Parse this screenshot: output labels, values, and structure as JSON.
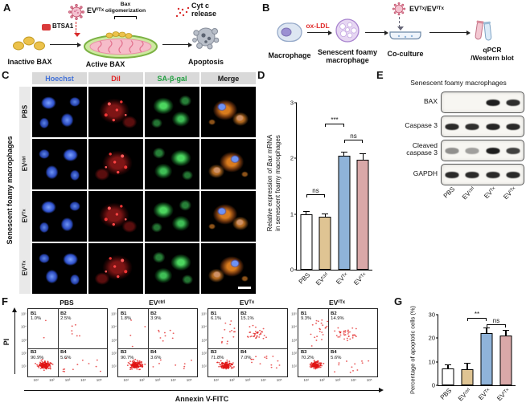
{
  "groups": [
    "PBS",
    "EVᶜᵗʳˡ",
    "EVᵀˣ",
    "EVⁱᵀˣ"
  ],
  "panelA": {
    "label": "A",
    "ev_label": "EVⁱᵀˣ",
    "btsa1": "BTSA1",
    "bax_oligomerization": "Bax oligomerization",
    "cytc_release": "Cyt c release",
    "inactive_bax": "Inactive BAX",
    "active_bax": "Active BAX",
    "apoptosis": "Apoptosis"
  },
  "panelB": {
    "label": "B",
    "ev_label": "EVᵀˣ/EVⁱᵀˣ",
    "oxldl": "ox-LDL",
    "macrophage": "Macrophage",
    "senescent": "Senescent foamy macrophage",
    "coculture": "Co-culture",
    "readout1": "qPCR",
    "readout2": "/Western blot"
  },
  "panelC": {
    "label": "C",
    "side_label": "Senescent foamy macrophages",
    "columns": [
      {
        "label": "Hoechst",
        "color": "#3f6fd8"
      },
      {
        "label": "DiI",
        "color": "#e22626"
      },
      {
        "label": "SA-β-gal",
        "color": "#1f9e3e"
      },
      {
        "label": "Merge",
        "color": "#151515"
      }
    ]
  },
  "panelD": {
    "label": "D",
    "ylabel_pre": "Relative expression of ",
    "ylabel_italic": "Bax",
    "ylabel_post": " mRNA",
    "ylabel_line2": "in senescent foamy macrophages"
  },
  "panelE": {
    "label": "E",
    "title": "Senescent foamy macrophages",
    "blots": [
      {
        "label": "BAX",
        "bands": [
          0,
          0,
          0.95,
          0.88
        ]
      },
      {
        "label": "Caspase 3",
        "bands": [
          0.9,
          0.88,
          0.92,
          0.9
        ]
      },
      {
        "label": "Cleaved caspase 3",
        "bands": [
          0.45,
          0.38,
          0.95,
          0.8
        ]
      },
      {
        "label": "GAPDH",
        "bands": [
          0.9,
          0.9,
          0.9,
          0.9
        ]
      }
    ]
  },
  "panelF": {
    "label": "F",
    "ylabel": "PI",
    "xlabel": "Annexin V-FITC",
    "dot_color": "#e01414",
    "yticks": [
      "10⁵",
      "10⁴",
      "10³",
      "10²",
      "10¹"
    ],
    "xticks": [
      "10¹",
      "10²",
      "10³",
      "10⁴",
      "10⁵"
    ],
    "plots": [
      {
        "title": "PBS",
        "quadrants": [
          {
            "name": "B1",
            "value": "1.0%"
          },
          {
            "name": "B2",
            "value": "2.5%"
          },
          {
            "name": "B3",
            "value": "90.9%"
          },
          {
            "name": "B4",
            "value": "5.6%"
          }
        ]
      },
      {
        "title": "EVᶜᵗʳˡ",
        "quadrants": [
          {
            "name": "B1",
            "value": "1.8%"
          },
          {
            "name": "B2",
            "value": "3.9%"
          },
          {
            "name": "B3",
            "value": "90.7%"
          },
          {
            "name": "B4",
            "value": "3.6%"
          }
        ]
      },
      {
        "title": "EVᵀˣ",
        "quadrants": [
          {
            "name": "B1",
            "value": "6.1%"
          },
          {
            "name": "B2",
            "value": "15.1%"
          },
          {
            "name": "B3",
            "value": "71.8%"
          },
          {
            "name": "B4",
            "value": "7.0%"
          }
        ]
      },
      {
        "title": "EVⁱᵀˣ",
        "quadrants": [
          {
            "name": "B1",
            "value": "9.3%"
          },
          {
            "name": "B2",
            "value": "14.9%"
          },
          {
            "name": "B3",
            "value": "70.2%"
          },
          {
            "name": "B4",
            "value": "5.6%"
          }
        ]
      }
    ]
  },
  "panelG": {
    "label": "G",
    "ylabel": "Percentage of apoptotic cells (%)"
  },
  "chart_data": [
    {
      "type": "bar",
      "panel": "D",
      "title": "",
      "categories": [
        "PBS",
        "EVᶜᵗʳˡ",
        "EVᵀˣ",
        "EVⁱᵀˣ"
      ],
      "values": [
        1.0,
        0.95,
        2.05,
        1.97
      ],
      "errors": [
        0.05,
        0.06,
        0.07,
        0.12
      ],
      "colors": [
        "#ffffff",
        "#dfc493",
        "#8fb3d9",
        "#d9a8a8"
      ],
      "ylabel": "Relative expression of Bax mRNA in senescent foamy macrophages",
      "ylim": [
        0,
        3
      ],
      "yticks": [
        0,
        1,
        2,
        3
      ],
      "significance": [
        {
          "from": 0,
          "to": 1,
          "label": "ns",
          "y": 1.35
        },
        {
          "from": 1,
          "to": 2,
          "label": "***",
          "y": 2.62
        },
        {
          "from": 2,
          "to": 3,
          "label": "ns",
          "y": 2.33
        }
      ]
    },
    {
      "type": "bar",
      "panel": "G",
      "title": "",
      "categories": [
        "PBS",
        "EVᶜᵗʳˡ",
        "EVᵀˣ",
        "EVⁱᵀˣ"
      ],
      "values": [
        7,
        6.8,
        22,
        21
      ],
      "errors": [
        1.8,
        2.8,
        2.5,
        2.6
      ],
      "colors": [
        "#ffffff",
        "#dfc493",
        "#8fb3d9",
        "#d9a8a8"
      ],
      "ylabel": "Percentage of apoptotic cells (%)",
      "ylim": [
        0,
        30
      ],
      "yticks": [
        0,
        10,
        20,
        30
      ],
      "significance": [
        {
          "from": 1,
          "to": 2,
          "label": "**",
          "y": 28.5
        },
        {
          "from": 2,
          "to": 3,
          "label": "ns",
          "y": 25.8
        }
      ]
    }
  ]
}
